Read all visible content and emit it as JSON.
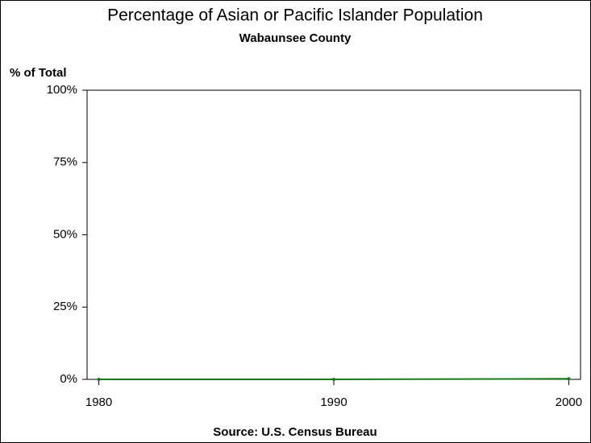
{
  "chart_data": {
    "type": "line",
    "title": "Percentage of Asian or Pacific Islander Population",
    "subtitle": "Wabaunsee County",
    "y_label": "% of Total",
    "source": "Source: U.S. Census Bureau",
    "x": [
      1980,
      1990,
      2000
    ],
    "series": [
      {
        "color": "#1a7a1a",
        "values": [
          0,
          0,
          0.2
        ]
      }
    ],
    "xlim": [
      1979.5,
      2000.5
    ],
    "xticks": [
      1980,
      1990,
      2000
    ],
    "ylim": [
      0,
      100
    ],
    "yticks": [
      {
        "value": 0,
        "label": "0%"
      },
      {
        "value": 25,
        "label": "25%"
      },
      {
        "value": 50,
        "label": "50%"
      },
      {
        "value": 75,
        "label": "75%"
      },
      {
        "value": 100,
        "label": "100%"
      }
    ]
  }
}
